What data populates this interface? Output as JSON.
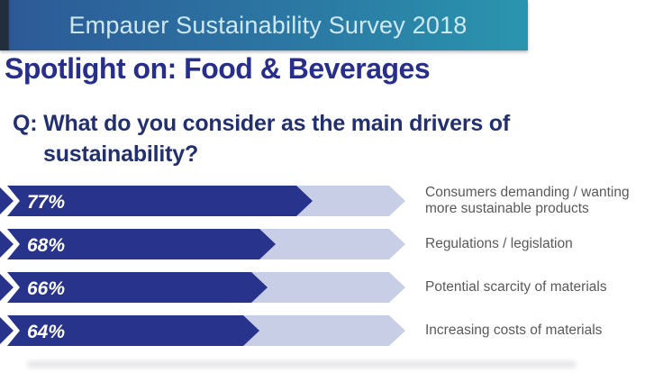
{
  "banner": {
    "title": "Empauer Sustainability Survey 2018"
  },
  "page": {
    "title": "Spotlight on: Food & Beverages"
  },
  "question": {
    "line1": "Q: What do you consider as the main drivers of",
    "line2": "sustainability?"
  },
  "chart_data": {
    "type": "bar",
    "orientation": "horizontal",
    "title": "What do you consider as the main drivers of sustainability?",
    "categories": [
      "Consumers demanding / wanting\nmore sustainable products",
      "Regulations / legislation",
      "Potential scarcity of materials",
      "Increasing costs of materials"
    ],
    "values": [
      77,
      68,
      66,
      64
    ],
    "value_suffix": "%",
    "xlim": [
      0,
      100
    ],
    "grid": false,
    "legend": false,
    "bar_color": "#28348b",
    "track_color": "#c8cee5",
    "value_label_color": "#ffffff",
    "category_label_color": "#58595b"
  },
  "colors": {
    "banner_gradient_start": "#2d5a97",
    "banner_gradient_end": "#2a95ae",
    "banner_text": "#cfe9f4",
    "page_title": "#272f8b",
    "question_text": "#22306f"
  }
}
